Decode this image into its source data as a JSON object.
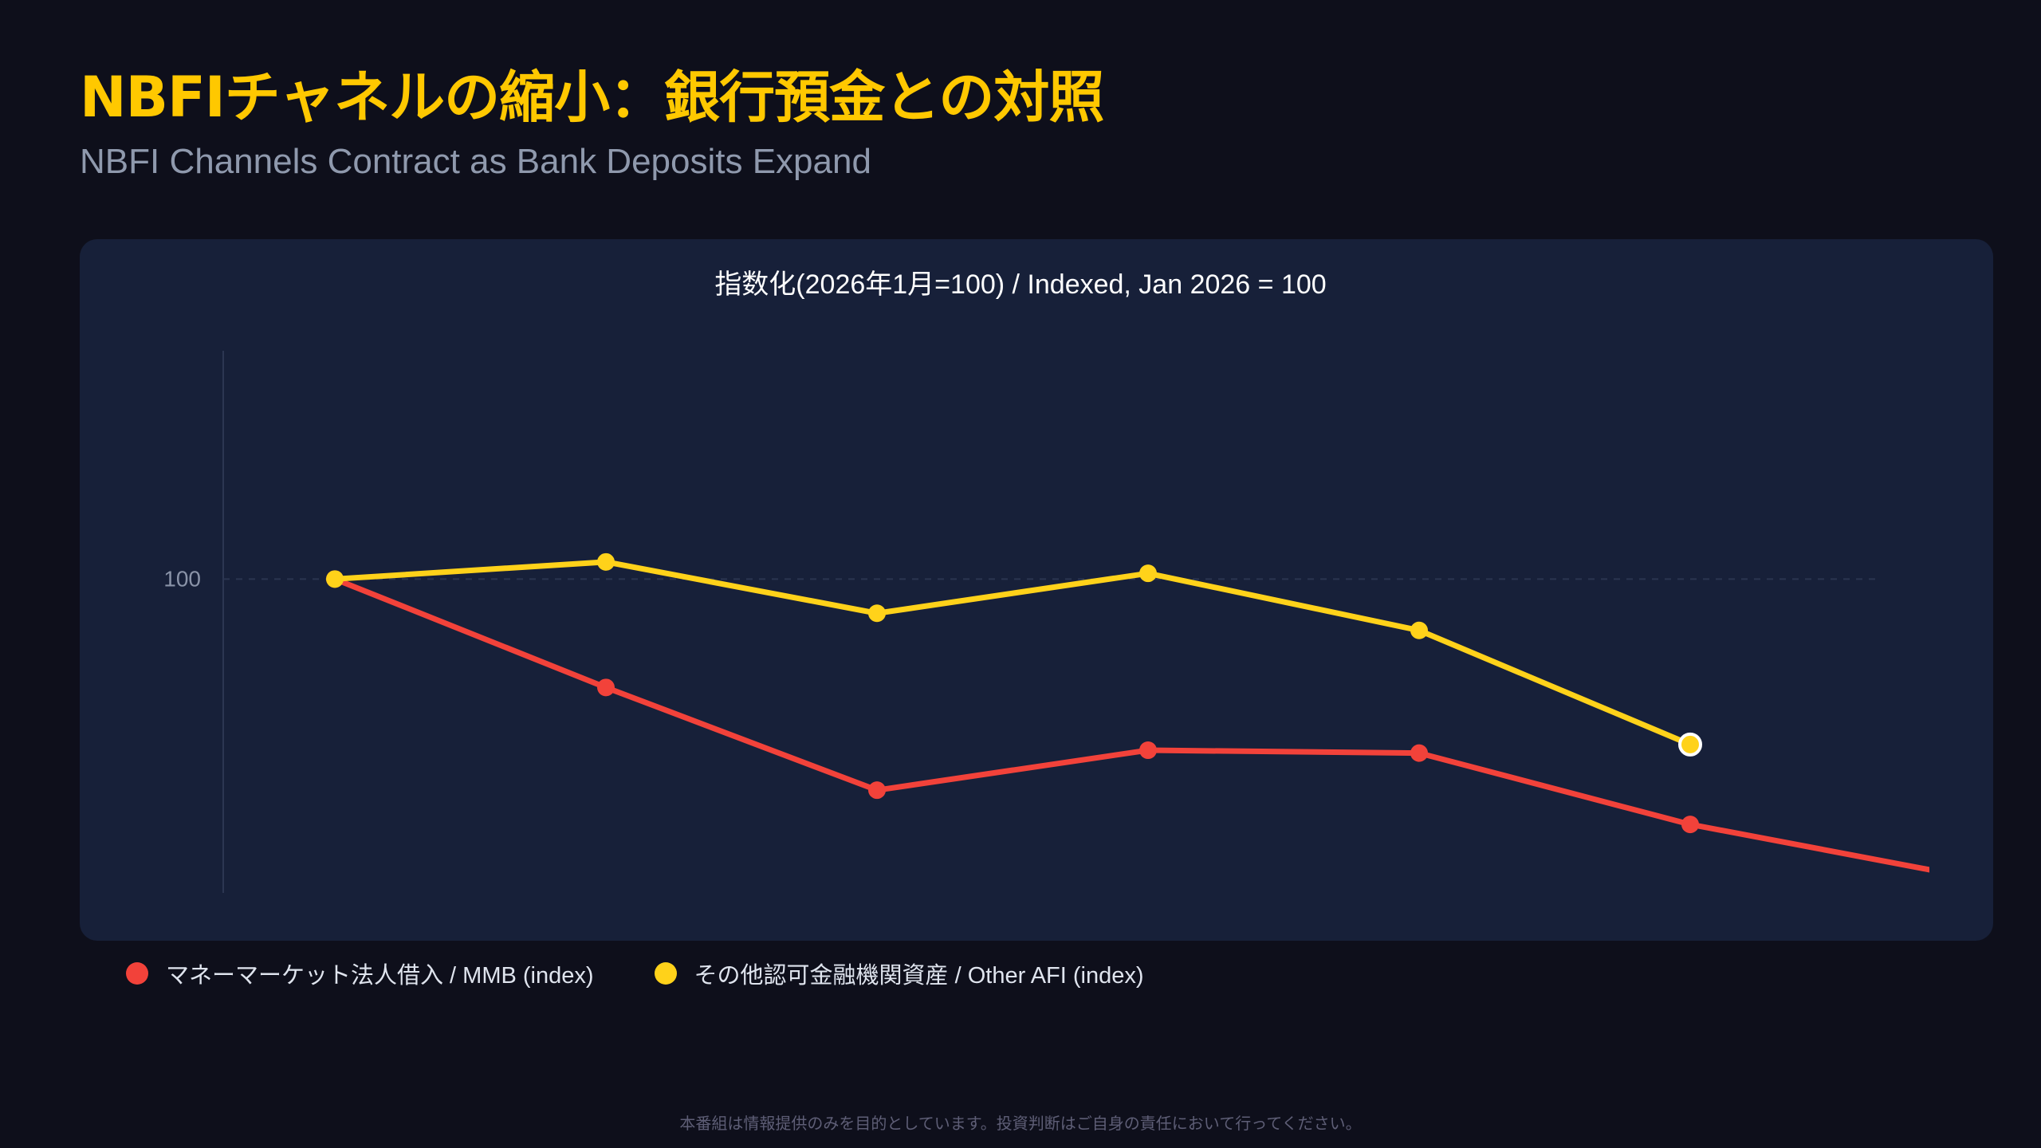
{
  "header": {
    "title": "NBFIチャネルの縮小：銀行預金との対照",
    "subtitle": "NBFI Channels Contract as Bank Deposits Expand"
  },
  "colors": {
    "background": "#0e0f1b",
    "panel": "#172039",
    "title": "#ffc800",
    "mmb": "#f2423a",
    "afi": "#ffd21a"
  },
  "chart_data": {
    "type": "line",
    "title": "指数化(2026年1月=100) / Indexed, Jan 2026 = 100",
    "xlabel": "",
    "ylabel": "",
    "x": [
      0,
      1,
      2,
      3,
      4,
      5,
      6
    ],
    "y_ticks": [
      100
    ],
    "ylim": [
      94.5,
      104
    ],
    "grid": "dashed line at 100",
    "legend": "bottom-left",
    "series": [
      {
        "name": "マネーマーケット法人借入 / MMB (index)",
        "color": "#f2423a",
        "values": [
          100,
          98.1,
          96.3,
          97.0,
          96.95,
          95.7,
          94.8
        ]
      },
      {
        "name": "その他認可金融機関資産 / Other AFI (index)",
        "color": "#ffd21a",
        "values": [
          100,
          100.3,
          99.4,
          100.1,
          99.1,
          97.1,
          null
        ]
      }
    ]
  },
  "legend": {
    "items": [
      {
        "label": "マネーマーケット法人借入 / MMB (index)",
        "color": "#f2423a"
      },
      {
        "label": "その他認可金融機関資産 / Other AFI (index)",
        "color": "#ffd21a"
      }
    ]
  },
  "footer": {
    "disclaimer": "本番組は情報提供のみを目的としています。投資判断はご自身の責任において行ってください。"
  }
}
